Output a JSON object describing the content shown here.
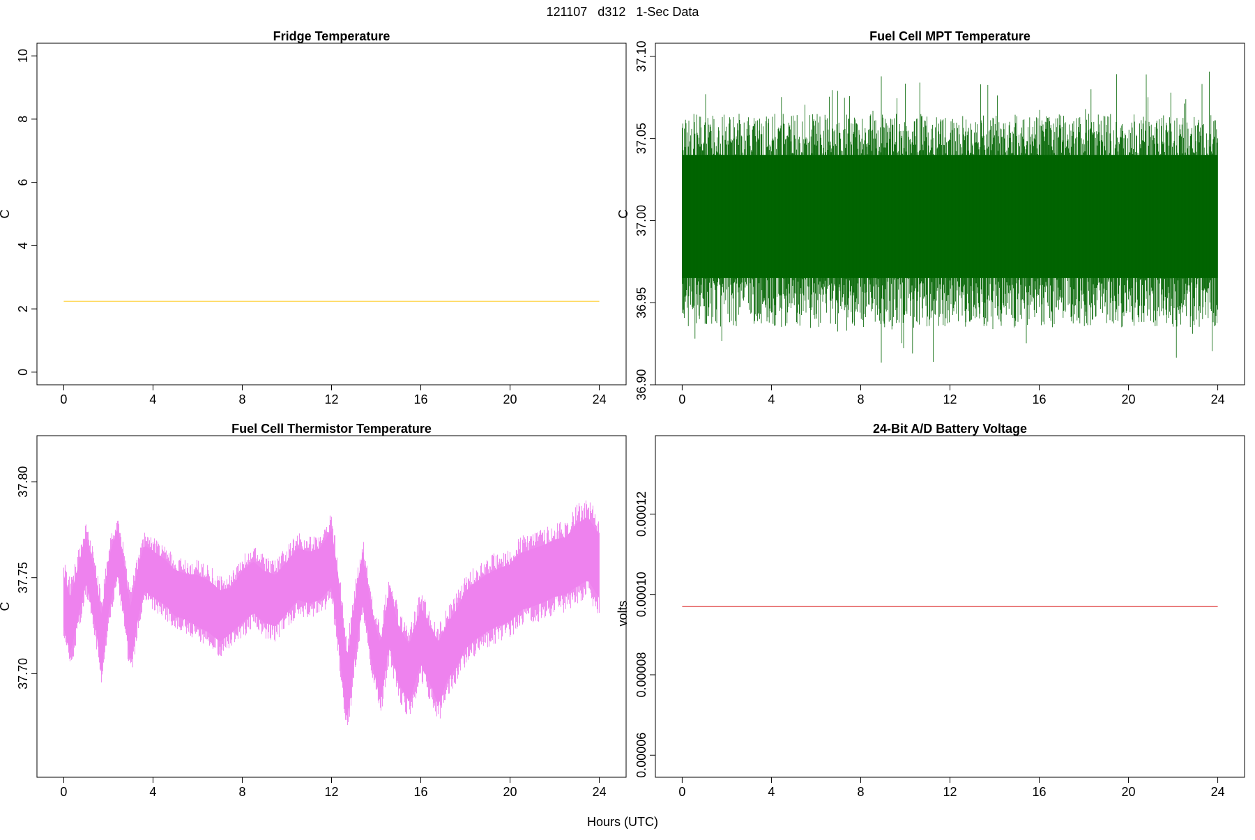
{
  "super_title": "121107   d312   1-Sec Data",
  "x_axis_label": "Hours (UTC)",
  "chart_data": [
    {
      "type": "line",
      "title": "Fridge Temperature",
      "xlabel": "Hours (UTC)",
      "ylabel": "C",
      "xlim": [
        -1.2,
        25.2
      ],
      "ylim": [
        -0.4,
        10.4
      ],
      "xticks": [
        0,
        4,
        8,
        12,
        16,
        20,
        24
      ],
      "yticks": [
        0,
        2,
        4,
        6,
        8,
        10
      ],
      "ytick_labels": [
        "0",
        "2",
        "4",
        "6",
        "8",
        "10"
      ],
      "color": "#ffd54a",
      "series": [
        {
          "x": [
            0,
            24
          ],
          "y": [
            2.24,
            2.24
          ]
        }
      ]
    },
    {
      "type": "line",
      "title": "Fuel Cell MPT Temperature",
      "xlabel": "Hours (UTC)",
      "ylabel": "C",
      "xlim": [
        -1.2,
        25.2
      ],
      "ylim": [
        36.9,
        37.108
      ],
      "xticks": [
        0,
        4,
        8,
        12,
        16,
        20,
        24
      ],
      "yticks": [
        36.9,
        36.95,
        37.0,
        37.05,
        37.1
      ],
      "ytick_labels": [
        "36.90",
        "36.95",
        "37.00",
        "37.05",
        "37.10"
      ],
      "color": "#006400",
      "noise": {
        "center": 37.0,
        "band_low": 36.965,
        "band_high": 37.04,
        "min": 36.907,
        "max": 37.102
      },
      "series": [
        {
          "x": [
            0,
            2,
            4,
            6,
            8,
            10,
            12,
            14,
            16,
            18,
            20,
            22,
            24
          ],
          "y": [
            37.0,
            37.0,
            37.0,
            37.0,
            37.0,
            37.0,
            37.0,
            37.0,
            37.0,
            37.0,
            37.0,
            37.0,
            37.0
          ]
        }
      ]
    },
    {
      "type": "line",
      "title": "Fuel Cell Thermistor Temperature",
      "xlabel": "Hours (UTC)",
      "ylabel": "C",
      "xlim": [
        -1.2,
        25.2
      ],
      "ylim": [
        37.646,
        37.824
      ],
      "xticks": [
        0,
        4,
        8,
        12,
        16,
        20,
        24
      ],
      "yticks": [
        37.7,
        37.75,
        37.8
      ],
      "ytick_labels": [
        "37.70",
        "37.75",
        "37.80"
      ],
      "color": "#ee82ee",
      "series": [
        {
          "name": "",
          "x": [
            0,
            0.3,
            0.7,
            1.0,
            1.4,
            1.7,
            2.0,
            2.4,
            2.7,
            3.0,
            3.3,
            3.6,
            4.0,
            4.5,
            5.0,
            5.5,
            6.0,
            6.5,
            7.0,
            7.5,
            8.0,
            8.5,
            9.0,
            9.5,
            10.0,
            10.5,
            11.0,
            11.5,
            12.0,
            12.3,
            12.7,
            13.0,
            13.4,
            13.8,
            14.2,
            14.6,
            15.0,
            15.5,
            16.0,
            16.4,
            16.8,
            17.2,
            17.6,
            18.0,
            18.5,
            19.0,
            19.5,
            20.0,
            20.5,
            21.0,
            21.5,
            22.0,
            22.5,
            23.0,
            23.5,
            24.0
          ],
          "y": [
            37.738,
            37.725,
            37.745,
            37.76,
            37.74,
            37.715,
            37.745,
            37.765,
            37.745,
            37.72,
            37.74,
            37.755,
            37.752,
            37.748,
            37.742,
            37.74,
            37.738,
            37.735,
            37.73,
            37.733,
            37.74,
            37.745,
            37.74,
            37.738,
            37.745,
            37.752,
            37.75,
            37.752,
            37.76,
            37.735,
            37.69,
            37.72,
            37.75,
            37.72,
            37.7,
            37.73,
            37.71,
            37.7,
            37.72,
            37.71,
            37.7,
            37.712,
            37.718,
            37.728,
            37.733,
            37.737,
            37.74,
            37.742,
            37.748,
            37.75,
            37.752,
            37.755,
            37.756,
            37.762,
            37.765,
            37.756
          ],
          "half_width": [
            0.018,
            0.02,
            0.018,
            0.016,
            0.018,
            0.02,
            0.018,
            0.016,
            0.018,
            0.02,
            0.018,
            0.016,
            0.016,
            0.016,
            0.016,
            0.016,
            0.018,
            0.018,
            0.018,
            0.016,
            0.018,
            0.018,
            0.018,
            0.018,
            0.018,
            0.018,
            0.018,
            0.018,
            0.02,
            0.022,
            0.022,
            0.02,
            0.018,
            0.018,
            0.02,
            0.02,
            0.02,
            0.02,
            0.02,
            0.02,
            0.022,
            0.02,
            0.02,
            0.02,
            0.02,
            0.02,
            0.02,
            0.02,
            0.02,
            0.02,
            0.02,
            0.02,
            0.02,
            0.022,
            0.022,
            0.022
          ]
        }
      ]
    },
    {
      "type": "line",
      "title": "24-Bit A/D Battery Voltage",
      "xlabel": "Hours (UTC)",
      "ylabel": "volts",
      "xlim": [
        -1.2,
        25.2
      ],
      "ylim": [
        5.45e-05,
        0.0001395
      ],
      "xticks": [
        0,
        4,
        8,
        12,
        16,
        20,
        24
      ],
      "yticks": [
        6e-05,
        8e-05,
        0.0001,
        0.00012
      ],
      "ytick_labels": [
        "0.00006",
        "0.00008",
        "0.00010",
        "0.00012"
      ],
      "color": "#dd3333",
      "series": [
        {
          "x": [
            0,
            24
          ],
          "y": [
            9.7e-05,
            9.7e-05
          ]
        }
      ]
    }
  ]
}
